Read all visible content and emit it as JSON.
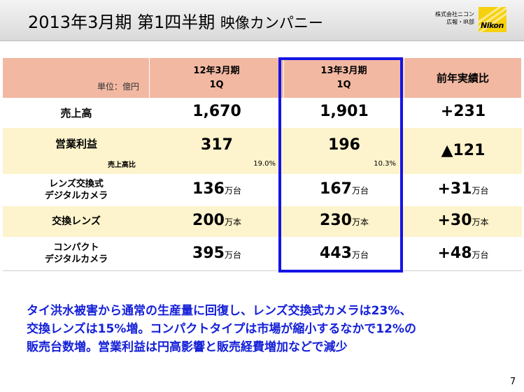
{
  "header": {
    "title_main": "2013年3月期 第1四半期",
    "title_sub": "映像カンパニー",
    "company_line1": "株式会社ニコン",
    "company_line2": "広報・IR部",
    "logo_text": "Nikon"
  },
  "table": {
    "unit": "単位：億円",
    "col1_line1": "12年3月期",
    "col1_line2": "1Q",
    "col2_line1": "13年3月期",
    "col2_line2": "1Q",
    "col3": "前年実績比",
    "rows": [
      {
        "label": "売上高",
        "v1": "1,670",
        "v2": "1,901",
        "v3": "+231"
      },
      {
        "label": "営業利益",
        "sublabel": "売上高比",
        "v1": "317",
        "v1_pct": "19.0%",
        "v2": "196",
        "v2_pct": "10.3%",
        "v3": "▲121"
      },
      {
        "label_line1": "レンズ交換式",
        "label_line2": "デジタルカメラ",
        "v1": "136",
        "v1_unit": "万台",
        "v2": "167",
        "v2_unit": "万台",
        "v3": "+31",
        "v3_unit": "万台"
      },
      {
        "label": "交換レンズ",
        "v1": "200",
        "v1_unit": "万本",
        "v2": "230",
        "v2_unit": "万本",
        "v3": "+30",
        "v3_unit": "万本"
      },
      {
        "label_line1": "コンパクト",
        "label_line2": "デジタルカメラ",
        "v1": "395",
        "v1_unit": "万台",
        "v2": "443",
        "v2_unit": "万台",
        "v3": "+48",
        "v3_unit": "万台"
      }
    ]
  },
  "summary": {
    "line1": "タイ洪水被害から通常の生産量に回復し、レンズ交換式カメラは23%、",
    "line2": "交換レンズは15%増。コンパクトタイプは市場が縮小するなかで12%の",
    "line3": "販売台数増。営業利益は円高影響と販売経費増加などで減少"
  },
  "page_number": "7"
}
